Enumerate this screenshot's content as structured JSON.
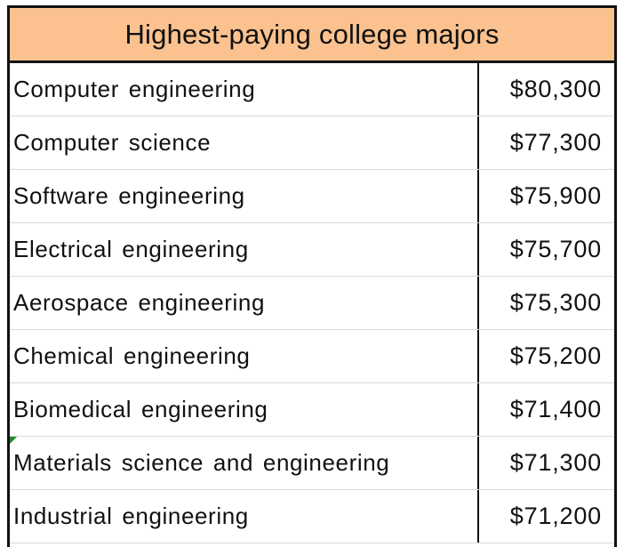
{
  "title": "Highest-paying college majors",
  "rows": [
    {
      "major": "Computer engineering",
      "salary": "$80,300"
    },
    {
      "major": "Computer science",
      "salary": "$77,300"
    },
    {
      "major": "Software engineering",
      "salary": "$75,900"
    },
    {
      "major": "Electrical engineering",
      "salary": "$75,700"
    },
    {
      "major": "Aerospace engineering",
      "salary": "$75,300"
    },
    {
      "major": "Chemical engineering",
      "salary": "$75,200"
    },
    {
      "major": "Biomedical engineering",
      "salary": "$71,400"
    },
    {
      "major": "Materials science and engineering",
      "salary": "$71,300"
    },
    {
      "major": "Industrial engineering",
      "salary": "$71,200"
    }
  ],
  "colors": {
    "header_fill": "#fbc28f",
    "border": "#111111",
    "gridline": "#d9d9d9",
    "comment_marker": "#1e8a2a"
  }
}
